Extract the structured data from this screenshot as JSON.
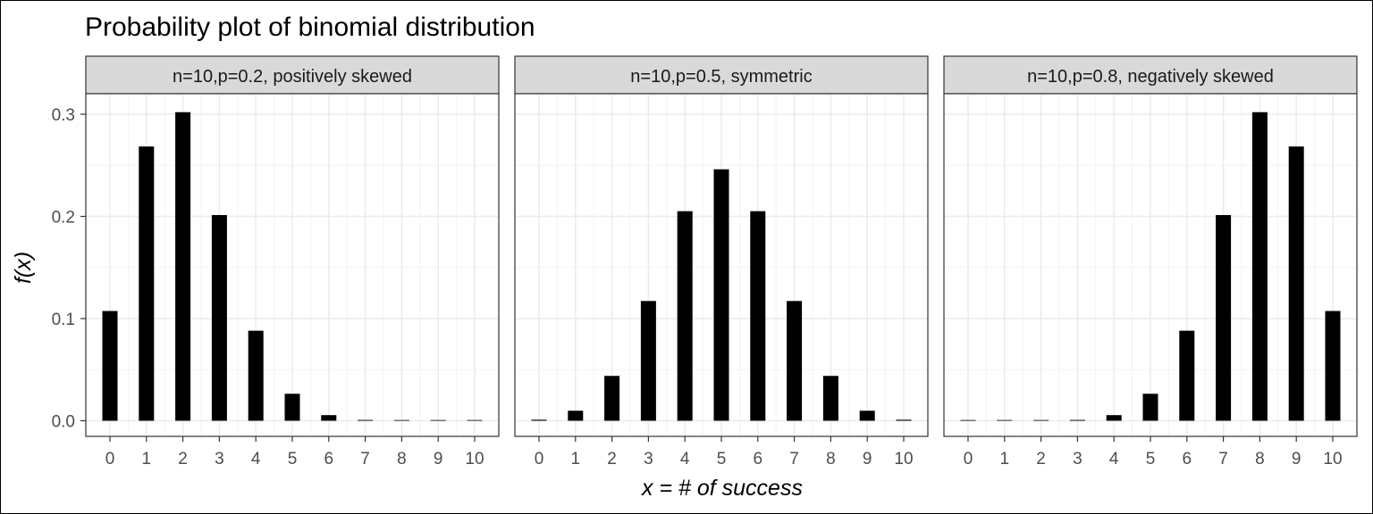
{
  "chart_data": {
    "type": "bar",
    "title": "Probability plot of binomial distribution",
    "xlabel": "x = # of success",
    "ylabel": "f(x)",
    "categories": [
      "0",
      "1",
      "2",
      "3",
      "4",
      "5",
      "6",
      "7",
      "8",
      "9",
      "10"
    ],
    "yticks": [
      "0.0",
      "0.1",
      "0.2",
      "0.3"
    ],
    "ylim": [
      0,
      0.33
    ],
    "grid": true,
    "bar_color": "#000000",
    "panels": [
      {
        "strip": "n=10,p=0.2, positively skewed",
        "values": [
          0.1074,
          0.2684,
          0.302,
          0.2013,
          0.0881,
          0.0264,
          0.0055,
          0.0008,
          0.0001,
          0.0,
          0.0
        ]
      },
      {
        "strip": "n=10,p=0.5, symmetric",
        "values": [
          0.001,
          0.0098,
          0.0439,
          0.1172,
          0.2051,
          0.2461,
          0.2051,
          0.1172,
          0.0439,
          0.0098,
          0.001
        ]
      },
      {
        "strip": "n=10,p=0.8, negatively skewed",
        "values": [
          0.0,
          0.0,
          0.0001,
          0.0008,
          0.0055,
          0.0264,
          0.0881,
          0.2013,
          0.302,
          0.2684,
          0.1074
        ]
      }
    ]
  }
}
